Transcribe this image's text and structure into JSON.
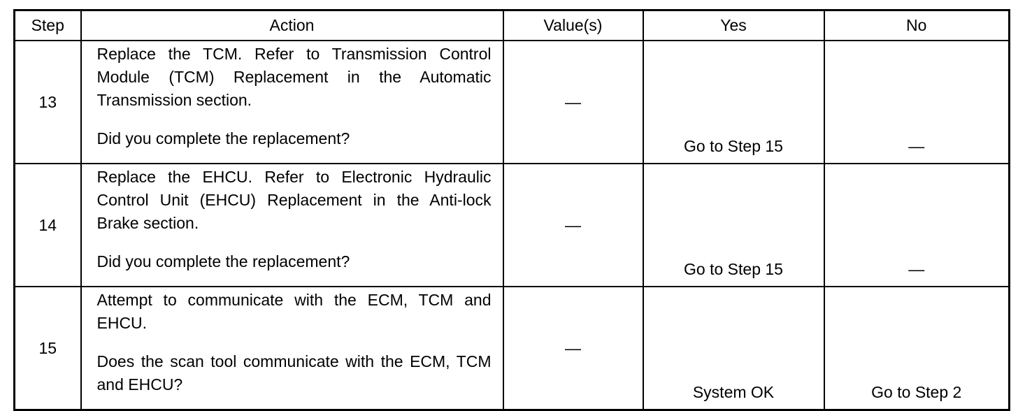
{
  "headers": [
    "Step",
    "Action",
    "Value(s)",
    "Yes",
    "No"
  ],
  "rows": [
    {
      "step": "13",
      "action": "Replace the TCM. Refer to Transmission Control Module (TCM) Replacement in the Automatic Transmission section.",
      "question": "Did you complete the replacement?",
      "value": "—",
      "yes": "Go to Step 15",
      "no": "—"
    },
    {
      "step": "14",
      "action": "Replace the EHCU. Refer to Electronic Hydraulic Control Unit (EHCU) Replacement in the Anti-lock Brake section.",
      "question": "Did you complete the replacement?",
      "value": "—",
      "yes": "Go to Step 15",
      "no": "—"
    },
    {
      "step": "15",
      "action": "Attempt to communicate with the ECM, TCM and EHCU.",
      "question": "Does the scan tool communicate with the ECM, TCM and EHCU?",
      "value": "—",
      "yes": "System OK",
      "no": "Go to Step 2"
    }
  ]
}
